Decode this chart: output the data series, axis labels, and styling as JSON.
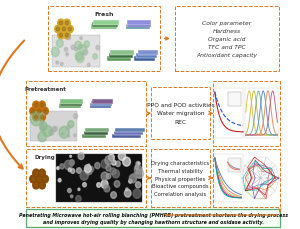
{
  "bg_color": "#ffffff",
  "title_text": "Penetrating Microwave hot-air rolling blanching (PMHRB) pretreatment shortens the drying process\nand improves drying quality by changing hawthorn structure and oxidase activity.",
  "title_box_edge": "#5BAD6F",
  "title_bg": "#F5FFF5",
  "orange": "#E07820",
  "dashed_orange": "#E07820",
  "row1_label": "Fresh",
  "row2_label": "Pretreatment",
  "row3_label": "Drying",
  "mid2_text": "PPO and POD activities\nWater migration\nREC",
  "mid3_text": "Drying characteristics\nThermal stability\nPhysical properties\nBioactive compounds\nCorrelation analysis",
  "right1_text": "Color parameter\nHardness\nOrganic acid\nTFC and TPC\nAntioxidant capacity",
  "fruit_color_fresh": "#D4A830",
  "fruit_color_pre": "#C07010",
  "fruit_color_dry": "#8A4808",
  "sem_bg": "#111111"
}
